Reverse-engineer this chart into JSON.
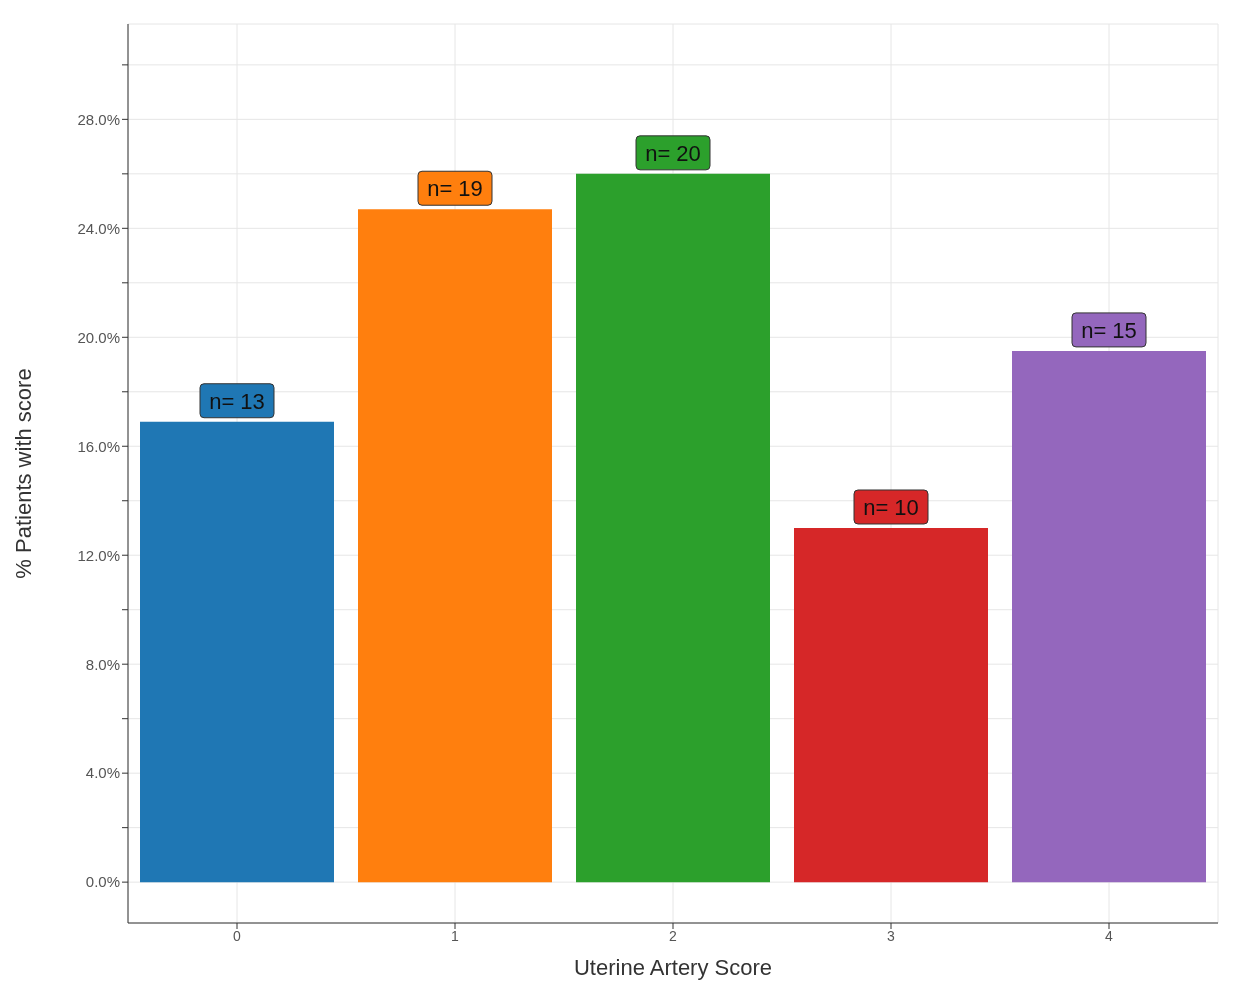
{
  "chart_data": {
    "type": "bar",
    "xlabel": "Uterine Artery Score",
    "ylabel": "% Patients with score",
    "categories": [
      "0",
      "1",
      "2",
      "3",
      "4"
    ],
    "values": [
      16.9,
      24.7,
      26.0,
      13.0,
      19.5
    ],
    "colors": [
      "#1f77b4",
      "#ff7f0e",
      "#2ca02c",
      "#d62728",
      "#9467bd"
    ],
    "annotations": [
      {
        "text": "n= 13",
        "x": "0",
        "y": 16.9
      },
      {
        "text": "n= 19",
        "x": "1",
        "y": 24.7
      },
      {
        "text": "n= 20",
        "x": "2",
        "y": 26.0
      },
      {
        "text": "n= 10",
        "x": "3",
        "y": 13.0
      },
      {
        "text": "n= 15",
        "x": "4",
        "y": 19.5
      }
    ],
    "ylim": [
      -1.5,
      31.5
    ],
    "yticks": [
      {
        "value": 0,
        "label": "0.0%"
      },
      {
        "value": 2,
        "label": null
      },
      {
        "value": 4,
        "label": "4.0%"
      },
      {
        "value": 6,
        "label": null
      },
      {
        "value": 8,
        "label": "8.0%"
      },
      {
        "value": 10,
        "label": null
      },
      {
        "value": 12,
        "label": "12.0%"
      },
      {
        "value": 14,
        "label": null
      },
      {
        "value": 16,
        "label": "16.0%"
      },
      {
        "value": 18,
        "label": null
      },
      {
        "value": 20,
        "label": "20.0%"
      },
      {
        "value": 22,
        "label": null
      },
      {
        "value": 24,
        "label": "24.0%"
      },
      {
        "value": 26,
        "label": null
      },
      {
        "value": 28,
        "label": "28.0%"
      },
      {
        "value": 30,
        "label": null
      }
    ],
    "grid": true
  }
}
